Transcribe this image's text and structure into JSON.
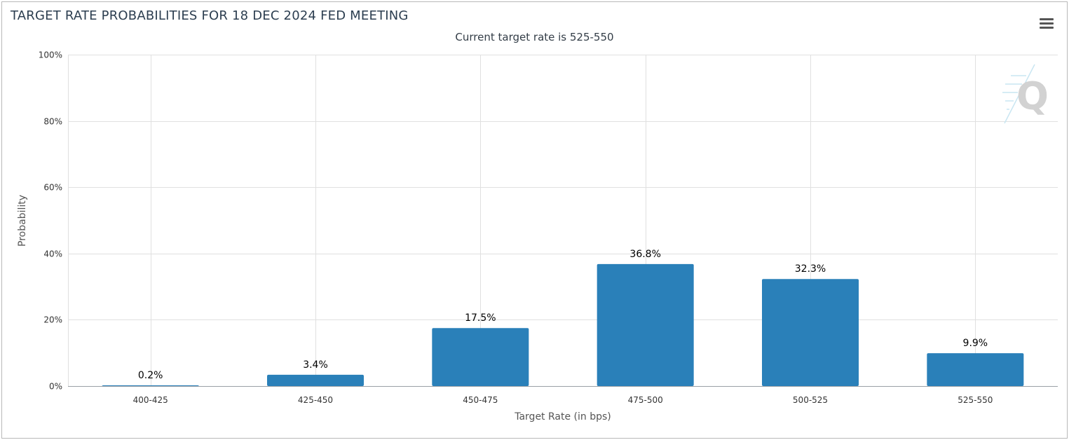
{
  "header": {
    "title": "TARGET RATE PROBABILITIES FOR 18 DEC 2024 FED MEETING",
    "subtitle": "Current target rate is 525-550"
  },
  "toolbar": {
    "menu_icon": "hamburger-menu-icon"
  },
  "watermark": {
    "icon": "q-logo-icon",
    "text": "Q"
  },
  "colors": {
    "bar": "#2a80b9",
    "grid": "#e0e0e0",
    "title": "#2c3e50"
  },
  "chart_data": {
    "type": "bar",
    "title": "TARGET RATE PROBABILITIES FOR 18 DEC 2024 FED MEETING",
    "subtitle": "Current target rate is 525-550",
    "xlabel": "Target Rate (in bps)",
    "ylabel": "Probability",
    "categories": [
      "400-425",
      "425-450",
      "450-475",
      "475-500",
      "500-525",
      "525-550"
    ],
    "values": [
      0.2,
      3.4,
      17.5,
      36.8,
      32.3,
      9.9
    ],
    "data_labels": [
      "0.2%",
      "3.4%",
      "17.5%",
      "36.8%",
      "32.3%",
      "9.9%"
    ],
    "yticks": [
      0,
      20,
      40,
      60,
      80,
      100
    ],
    "ytick_labels": [
      "0%",
      "20%",
      "40%",
      "60%",
      "80%",
      "100%"
    ],
    "ylim": [
      0,
      100
    ],
    "grid": true,
    "legend": "none"
  }
}
